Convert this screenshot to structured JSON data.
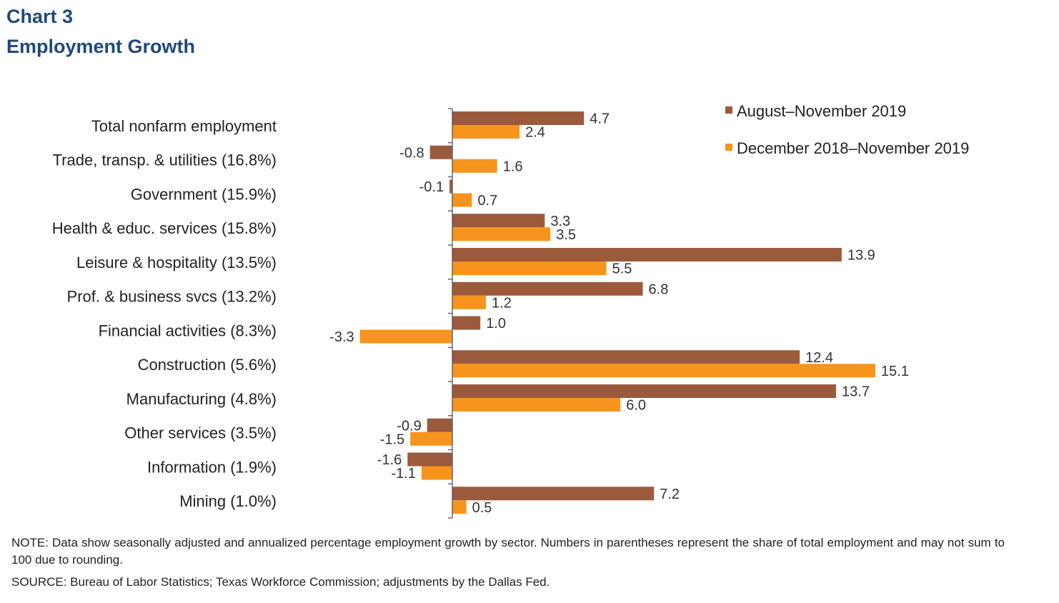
{
  "heading": {
    "chart_number": "Chart 3",
    "title": "Employment Growth"
  },
  "chart_data": {
    "type": "bar",
    "orientation": "horizontal",
    "title": "Employment Growth",
    "categories": [
      "Total nonfarm employment",
      "Trade, transp. & utilities (16.8%)",
      "Government (15.9%)",
      "Health & educ. services (15.8%)",
      "Leisure & hospitality (13.5%)",
      "Prof. & business svcs (13.2%)",
      "Financial activities (8.3%)",
      "Construction (5.6%)",
      "Manufacturing (4.8%)",
      "Other services (3.5%)",
      "Information (1.9%)",
      "Mining (1.0%)"
    ],
    "series": [
      {
        "name": "August–November 2019",
        "color": "#9c5a3c",
        "values": [
          4.7,
          -0.8,
          -0.1,
          3.3,
          13.9,
          6.8,
          1.0,
          12.4,
          13.7,
          -0.9,
          -1.6,
          7.2
        ],
        "labels": [
          "4.7",
          "-0.8",
          "-0.1",
          "3.3",
          "13.9",
          "6.8",
          "1.0",
          "12.4",
          "13.7",
          "-0.9",
          "-1.6",
          "7.2"
        ]
      },
      {
        "name": "December 2018–November 2019",
        "color": "#f7941d",
        "values": [
          2.4,
          1.6,
          0.7,
          3.5,
          5.5,
          1.2,
          -3.3,
          15.1,
          6.0,
          -1.5,
          -1.1,
          0.5
        ],
        "labels": [
          "2.4",
          "1.6",
          "0.7",
          "3.5",
          "5.5",
          "1.2",
          "-3.3",
          "15.1",
          "6.0",
          "-1.5",
          "-1.1",
          "0.5"
        ]
      }
    ],
    "xlim": [
      -4,
      16
    ],
    "grid": false,
    "legend": "top-right"
  },
  "footer": {
    "note": "NOTE: Data show seasonally adjusted and annualized percentage employment growth by sector. Numbers in parentheses represent the share of total employment and may not sum to 100 due to rounding.",
    "source": "SOURCE: Bureau of Labor Statistics; Texas Workforce Commission; adjustments by the Dallas Fed."
  }
}
